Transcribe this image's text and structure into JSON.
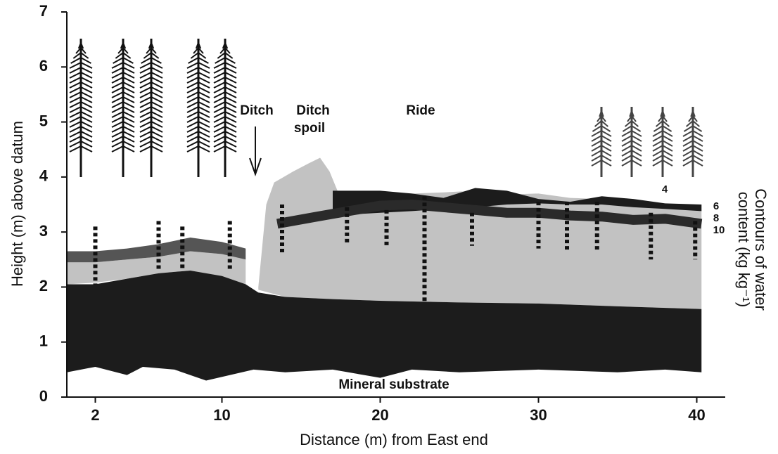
{
  "chart_data": {
    "type": "section",
    "xlabel": "Distance (m) from East end",
    "ylabel": "Height (m) above datum",
    "y2label": [
      "Contours of water",
      "content (kg kg⁻¹)"
    ],
    "xlim": [
      0.2,
      41.8
    ],
    "ylim": [
      0,
      7
    ],
    "xticks": [
      2,
      10,
      20,
      30,
      40
    ],
    "yticks": [
      0,
      1,
      2,
      3,
      4,
      5,
      6,
      7
    ],
    "annotations": [
      "Ditch",
      "Ditch",
      "spoil",
      "Ride",
      "Mineral substrate"
    ],
    "contour_labels": [
      "4",
      "6",
      "8",
      "10"
    ],
    "layers": [
      {
        "color": "#c2c2c2",
        "x": [
          12.3,
          12.8,
          13.3,
          14.5,
          15.5,
          16.2,
          16.8,
          17.3,
          20,
          22,
          24,
          26,
          28,
          30,
          32,
          34,
          36,
          38,
          40.3,
          40.3,
          35,
          30,
          25,
          20,
          17,
          14,
          12.3
        ],
        "y": [
          2.0,
          3.5,
          3.9,
          4.1,
          4.25,
          4.35,
          4.1,
          3.75,
          3.72,
          3.7,
          3.72,
          3.75,
          3.68,
          3.7,
          3.62,
          3.6,
          3.55,
          3.5,
          3.5,
          1.6,
          1.65,
          1.7,
          1.72,
          1.75,
          1.78,
          1.82,
          1.95
        ]
      },
      {
        "color": "#c2c2c2",
        "x": [
          0.2,
          2,
          4,
          6,
          8,
          10,
          11.5,
          11.5,
          10,
          8,
          6,
          4,
          2,
          0.2
        ],
        "y": [
          2.45,
          2.45,
          2.5,
          2.55,
          2.65,
          2.6,
          2.5,
          2.0,
          2.15,
          2.3,
          2.25,
          2.15,
          2.08,
          2.05
        ]
      },
      {
        "color": "#555555",
        "x": [
          0.2,
          2,
          4,
          6,
          8,
          10,
          11.5,
          11.5,
          10,
          8,
          6,
          4,
          2,
          0.2
        ],
        "y": [
          2.65,
          2.65,
          2.7,
          2.78,
          2.9,
          2.82,
          2.7,
          2.5,
          2.6,
          2.65,
          2.55,
          2.5,
          2.45,
          2.45
        ]
      },
      {
        "color": "#1c1c1c",
        "x": [
          0.2,
          2,
          4,
          6,
          8,
          10,
          11.5,
          12.3,
          14,
          17,
          20,
          25,
          30,
          35,
          40.3,
          40.3,
          38,
          35,
          30,
          25,
          22,
          20,
          17,
          14,
          12,
          9,
          7,
          5,
          4,
          2,
          0.2
        ],
        "y": [
          2.05,
          2.05,
          2.15,
          2.25,
          2.3,
          2.2,
          2.05,
          1.9,
          1.82,
          1.78,
          1.75,
          1.72,
          1.7,
          1.65,
          1.6,
          0.45,
          0.5,
          0.45,
          0.5,
          0.45,
          0.5,
          0.35,
          0.5,
          0.45,
          0.5,
          0.3,
          0.5,
          0.55,
          0.4,
          0.55,
          0.45
        ]
      },
      {
        "color": "#1c1c1c",
        "x": [
          17,
          20,
          22,
          24,
          26,
          28,
          30,
          32,
          34,
          36,
          38,
          40.3,
          40.3,
          38,
          36,
          34,
          32,
          30,
          28,
          26,
          24,
          22,
          20,
          17
        ],
        "y": [
          3.75,
          3.75,
          3.7,
          3.62,
          3.8,
          3.75,
          3.6,
          3.55,
          3.65,
          3.6,
          3.52,
          3.5,
          3.38,
          3.42,
          3.45,
          3.5,
          3.5,
          3.52,
          3.5,
          3.45,
          3.42,
          3.38,
          3.35,
          3.3
        ]
      }
    ],
    "contour": {
      "color": "#2a2a2a",
      "x": [
        13.5,
        16,
        18,
        20,
        22,
        24,
        26,
        28,
        30,
        32,
        34,
        36,
        38,
        40.3
      ],
      "y": [
        3.15,
        3.28,
        3.38,
        3.48,
        3.5,
        3.45,
        3.4,
        3.35,
        3.35,
        3.3,
        3.28,
        3.22,
        3.24,
        3.15
      ]
    },
    "probes": {
      "x": [
        2,
        6,
        7.5,
        10.5,
        13.8,
        17.9,
        20.4,
        22.8,
        25.8,
        30,
        31.8,
        33.7,
        37.1,
        39.9
      ],
      "top": [
        3.1,
        3.2,
        3.1,
        3.2,
        3.5,
        3.45,
        3.4,
        3.65,
        3.35,
        3.55,
        3.55,
        3.55,
        3.35,
        3.2
      ],
      "bottom": [
        2.05,
        2.3,
        2.3,
        2.3,
        2.6,
        2.8,
        2.75,
        1.7,
        2.75,
        2.7,
        2.65,
        2.65,
        2.5,
        2.5
      ]
    }
  }
}
